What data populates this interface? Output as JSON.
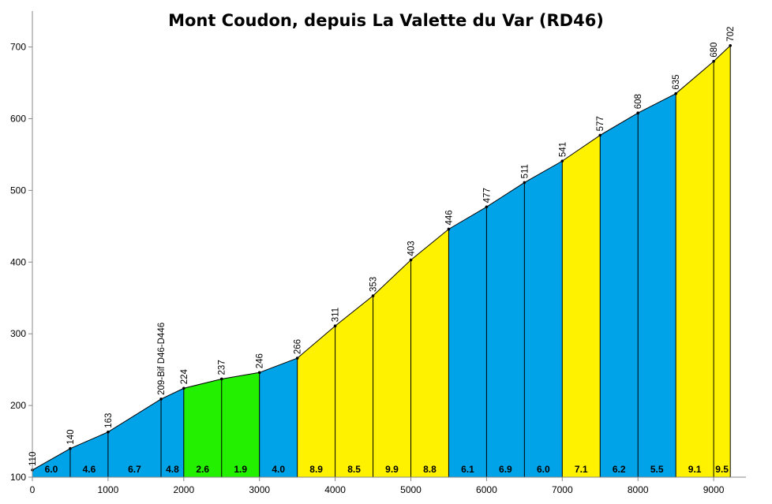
{
  "chart_data": {
    "type": "area",
    "title": "Mont Coudon, depuis La Valette du Var (RD46)",
    "xlabel": "",
    "ylabel": "",
    "xlim": [
      0,
      9300
    ],
    "ylim": [
      100,
      720
    ],
    "x_ticks": [
      "0",
      "1000",
      "2000",
      "3000",
      "4000",
      "5000",
      "6000",
      "7000",
      "8000",
      "9000"
    ],
    "y_ticks": [
      "100",
      "200",
      "300",
      "400",
      "500",
      "600",
      "700"
    ],
    "grid": false,
    "legend": "none",
    "points": [
      {
        "x": 0,
        "y": 110,
        "label": "110"
      },
      {
        "x": 500,
        "y": 140,
        "label": "140"
      },
      {
        "x": 1000,
        "y": 163,
        "label": "163"
      },
      {
        "x": 1700,
        "y": 209,
        "label": "209-Bif D46-D446"
      },
      {
        "x": 2000,
        "y": 224,
        "label": "224"
      },
      {
        "x": 2500,
        "y": 237,
        "label": "237"
      },
      {
        "x": 3000,
        "y": 246,
        "label": "246"
      },
      {
        "x": 3500,
        "y": 266,
        "label": "266"
      },
      {
        "x": 4000,
        "y": 311,
        "label": "311"
      },
      {
        "x": 4500,
        "y": 353,
        "label": "353"
      },
      {
        "x": 5000,
        "y": 403,
        "label": "403"
      },
      {
        "x": 5500,
        "y": 446,
        "label": "446"
      },
      {
        "x": 6000,
        "y": 477,
        "label": "477"
      },
      {
        "x": 6500,
        "y": 511,
        "label": "511"
      },
      {
        "x": 7000,
        "y": 541,
        "label": "541"
      },
      {
        "x": 7500,
        "y": 577,
        "label": "577"
      },
      {
        "x": 8000,
        "y": 608,
        "label": "608"
      },
      {
        "x": 8500,
        "y": 635,
        "label": "635"
      },
      {
        "x": 9000,
        "y": 680,
        "label": "680"
      },
      {
        "x": 9220,
        "y": 702,
        "label": "702"
      }
    ],
    "segments": [
      {
        "gradient": "6.0",
        "color": "#00a2e8"
      },
      {
        "gradient": "4.6",
        "color": "#00a2e8"
      },
      {
        "gradient": "6.7",
        "color": "#00a2e8"
      },
      {
        "gradient": "4.8",
        "color": "#00a2e8"
      },
      {
        "gradient": "2.6",
        "color": "#22f000"
      },
      {
        "gradient": "1.9",
        "color": "#22f000"
      },
      {
        "gradient": "4.0",
        "color": "#00a2e8"
      },
      {
        "gradient": "8.9",
        "color": "#fff200"
      },
      {
        "gradient": "8.5",
        "color": "#fff200"
      },
      {
        "gradient": "9.9",
        "color": "#fff200"
      },
      {
        "gradient": "8.8",
        "color": "#fff200"
      },
      {
        "gradient": "6.1",
        "color": "#00a2e8"
      },
      {
        "gradient": "6.9",
        "color": "#00a2e8"
      },
      {
        "gradient": "6.0",
        "color": "#00a2e8"
      },
      {
        "gradient": "7.1",
        "color": "#fff200"
      },
      {
        "gradient": "6.2",
        "color": "#00a2e8"
      },
      {
        "gradient": "5.5",
        "color": "#00a2e8"
      },
      {
        "gradient": "9.1",
        "color": "#fff200"
      },
      {
        "gradient": "9.5",
        "color": "#fff200"
      }
    ]
  }
}
